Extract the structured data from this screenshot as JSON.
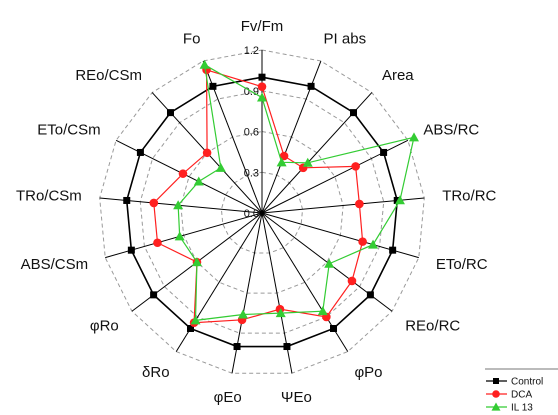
{
  "chart_data": {
    "type": "radar",
    "axes": [
      "Fv/Fm",
      "PI abs",
      "Area",
      "ABS/RC",
      "TRo/RC",
      "ETo/RC",
      "REo/RC",
      "φPo",
      "ΨEo",
      "φEo",
      "δRo",
      "φRo",
      "ABS/CSm",
      "TRo/CSm",
      "ETo/CSm",
      "REo/CSm",
      "Fo"
    ],
    "rlim": [
      0,
      1.2
    ],
    "ticks": [
      "0.0",
      "0.3",
      "0.6",
      "0.9",
      "1.2"
    ],
    "tick_values": [
      0,
      0.3,
      0.6,
      0.9,
      1.2
    ],
    "grid": true,
    "legend_position": "bottom-right",
    "series": [
      {
        "name": "Control",
        "color": "#000000",
        "marker": "square",
        "values": [
          1.0,
          1.0,
          1.0,
          1.0,
          1.0,
          1.0,
          1.0,
          1.0,
          1.0,
          1.0,
          1.0,
          1.0,
          1.0,
          1.0,
          1.0,
          1.0,
          1.0
        ]
      },
      {
        "name": "DCA",
        "color": "#ff2020",
        "marker": "circle",
        "values": [
          0.93,
          0.45,
          0.45,
          0.77,
          0.72,
          0.77,
          0.83,
          0.9,
          0.72,
          0.8,
          0.95,
          0.6,
          0.8,
          0.8,
          0.65,
          0.6,
          1.13
        ]
      },
      {
        "name": "IL 13",
        "color": "#33cc33",
        "marker": "triangle",
        "values": [
          0.85,
          0.4,
          0.5,
          1.25,
          1.02,
          0.85,
          0.62,
          0.85,
          0.75,
          0.76,
          0.93,
          0.6,
          0.63,
          0.62,
          0.52,
          0.45,
          1.17
        ]
      }
    ]
  }
}
